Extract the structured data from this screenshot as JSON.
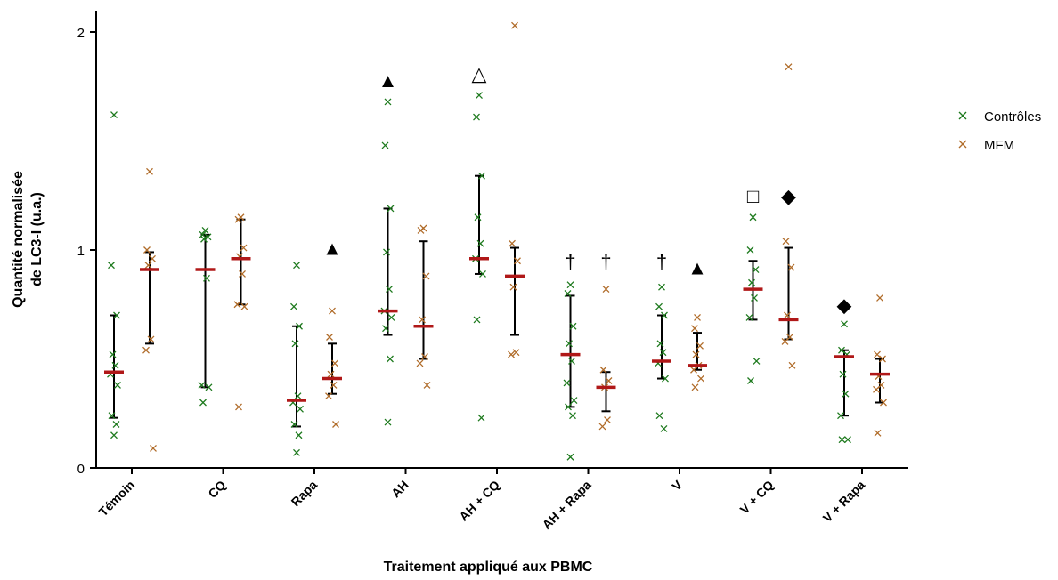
{
  "colors": {
    "controles": "#1e7a1e",
    "mfm": "#b06c2a",
    "median": "#b01818",
    "axis": "#000000"
  },
  "chart_data": {
    "type": "scatter",
    "xlabel": "Traitement appliqué aux  PBMC",
    "ylabel_lines": [
      "Quantité normalisée",
      "de LC3-I (u.a.)"
    ],
    "ylim": [
      0,
      2.1
    ],
    "yticks": [
      "0",
      "1",
      "2"
    ],
    "grid": false,
    "legend_position": "right",
    "categories": [
      "Témoin",
      "CQ",
      "Rapa",
      "AH",
      "AH + CQ",
      "AH + Rapa",
      "V",
      "V + CQ",
      "V + Rapa"
    ],
    "series": [
      {
        "name": "Contrôles",
        "marker": "x",
        "color": "#1e7a1e",
        "points": [
          [
            1.62,
            0.93,
            0.7,
            0.52,
            0.47,
            0.43,
            0.38,
            0.24,
            0.2,
            0.15
          ],
          [
            1.09,
            1.07,
            1.06,
            1.05,
            0.87,
            0.38,
            0.37,
            0.3
          ],
          [
            0.93,
            0.74,
            0.65,
            0.57,
            0.33,
            0.3,
            0.27,
            0.2,
            0.15,
            0.07
          ],
          [
            1.68,
            1.48,
            1.19,
            0.99,
            0.82,
            0.72,
            0.69,
            0.64,
            0.5,
            0.21
          ],
          [
            1.71,
            1.61,
            1.34,
            1.15,
            1.03,
            0.96,
            0.89,
            0.68,
            0.23
          ],
          [
            0.84,
            0.8,
            0.65,
            0.57,
            0.49,
            0.39,
            0.31,
            0.28,
            0.24,
            0.05
          ],
          [
            0.83,
            0.74,
            0.7,
            0.57,
            0.53,
            0.48,
            0.41,
            0.24,
            0.18
          ],
          [
            1.15,
            1.0,
            0.91,
            0.85,
            0.78,
            0.69,
            0.49,
            0.4
          ],
          [
            0.66,
            0.54,
            0.52,
            0.43,
            0.34,
            0.24,
            0.13,
            0.13
          ]
        ],
        "median": [
          0.44,
          0.91,
          0.31,
          0.72,
          0.96,
          0.52,
          0.49,
          0.82,
          0.51
        ],
        "error_low": [
          0.23,
          0.37,
          0.19,
          0.61,
          0.89,
          0.28,
          0.41,
          0.68,
          0.24
        ],
        "error_high": [
          0.7,
          1.07,
          0.65,
          1.19,
          1.34,
          0.79,
          0.7,
          0.95,
          0.54
        ]
      },
      {
        "name": "MFM",
        "marker": "x",
        "color": "#b06c2a",
        "points": [
          [
            1.36,
            1.0,
            0.96,
            0.93,
            0.59,
            0.54,
            0.09
          ],
          [
            1.15,
            1.14,
            1.01,
            0.97,
            0.89,
            0.75,
            0.74,
            0.28
          ],
          [
            0.72,
            0.6,
            0.48,
            0.43,
            0.38,
            0.33,
            0.2
          ],
          [
            1.1,
            1.09,
            0.88,
            0.68,
            0.51,
            0.48,
            0.38
          ],
          [
            2.03,
            1.03,
            0.95,
            0.83,
            0.53,
            0.52
          ],
          [
            0.82,
            0.45,
            0.4,
            0.37,
            0.22,
            0.19
          ],
          [
            0.69,
            0.64,
            0.56,
            0.52,
            0.47,
            0.45,
            0.41,
            0.37
          ],
          [
            1.84,
            1.04,
            0.92,
            0.7,
            0.6,
            0.58,
            0.47
          ],
          [
            0.78,
            0.52,
            0.5,
            0.42,
            0.38,
            0.36,
            0.3,
            0.16
          ]
        ],
        "median": [
          0.91,
          0.96,
          0.41,
          0.65,
          0.88,
          0.37,
          0.47,
          0.68,
          0.43
        ],
        "error_low": [
          0.57,
          0.75,
          0.34,
          0.5,
          0.61,
          0.26,
          0.45,
          0.59,
          0.3
        ],
        "error_high": [
          0.99,
          1.14,
          0.57,
          1.04,
          1.01,
          0.44,
          0.62,
          1.01,
          0.5
        ]
      }
    ],
    "annotations": [
      {
        "symbol": "▲",
        "category": 2,
        "series": 1,
        "y": 1.01,
        "color": "#000000"
      },
      {
        "symbol": "▲",
        "category": 3,
        "series": 0,
        "y": 1.78,
        "color": "#000000"
      },
      {
        "symbol": "△",
        "category": 4,
        "series": 0,
        "y": 1.81,
        "color": "#000000"
      },
      {
        "symbol": "†",
        "category": 5,
        "series": 0,
        "y": 0.95,
        "color": "#000000"
      },
      {
        "symbol": "†",
        "category": 5,
        "series": 1,
        "y": 0.95,
        "color": "#000000"
      },
      {
        "symbol": "†",
        "category": 6,
        "series": 0,
        "y": 0.95,
        "color": "#000000"
      },
      {
        "symbol": "▲",
        "category": 6,
        "series": 1,
        "y": 0.92,
        "color": "#000000"
      },
      {
        "symbol": "□",
        "category": 7,
        "series": 0,
        "y": 1.25,
        "color": "#000000"
      },
      {
        "symbol": "◆",
        "category": 7,
        "series": 1,
        "y": 1.25,
        "color": "#000000"
      },
      {
        "symbol": "◆",
        "category": 8,
        "series": 0,
        "y": 0.75,
        "color": "#000000"
      }
    ]
  }
}
